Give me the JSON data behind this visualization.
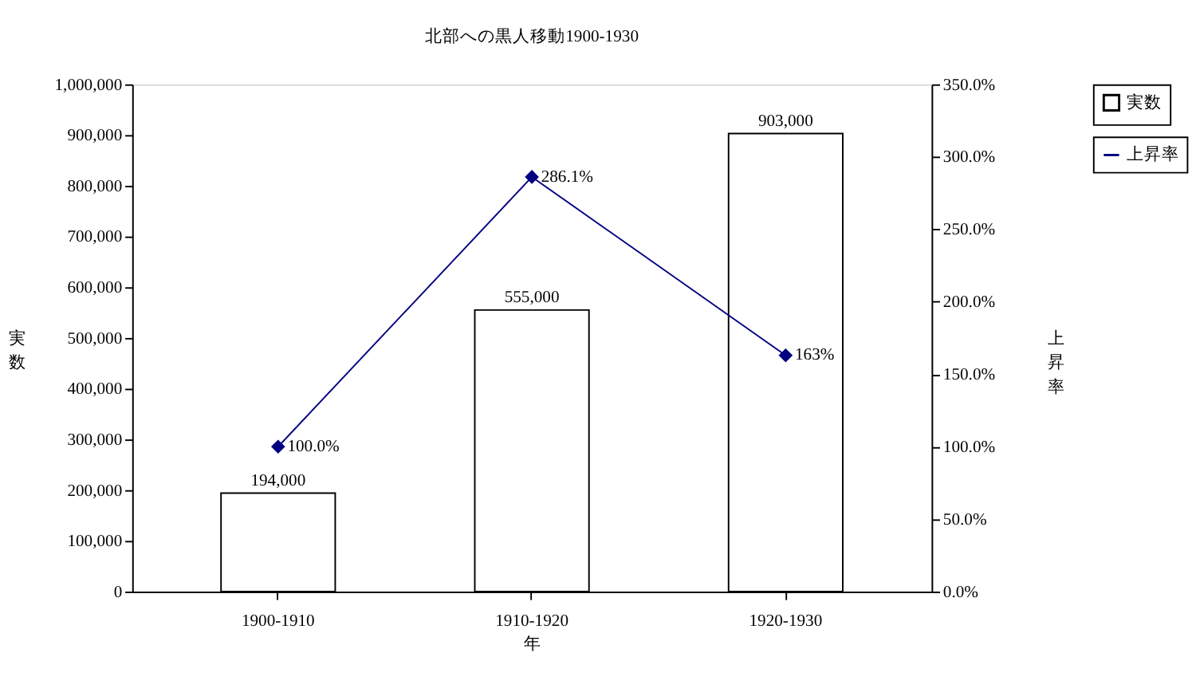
{
  "chart_data": {
    "type": "bar",
    "title": "北部への黒人移動1900-1930",
    "xlabel": "年",
    "ylabel": "実数",
    "y2label": "上昇率",
    "categories": [
      "1900-1910",
      "1910-1920",
      "1920-1930"
    ],
    "series": [
      {
        "name": "実数",
        "color": "#ffffff",
        "values": [
          194000,
          555000,
          903000
        ],
        "value_labels": [
          "194,000",
          "555,000",
          "903,000"
        ]
      },
      {
        "name": "上昇率",
        "type": "line",
        "axis": "y2",
        "color": "#000080",
        "values": [
          100,
          286.1,
          163
        ],
        "value_labels": [
          "100.0%",
          "286.1%",
          "163%"
        ]
      }
    ],
    "ylim": [
      0,
      1000000
    ],
    "yticks": [
      {
        "value": 0,
        "label": "0"
      },
      {
        "value": 100000,
        "label": "100,000"
      },
      {
        "value": 200000,
        "label": "200,000"
      },
      {
        "value": 300000,
        "label": "300,000"
      },
      {
        "value": 400000,
        "label": "400,000"
      },
      {
        "value": 500000,
        "label": "500,000"
      },
      {
        "value": 600000,
        "label": "600,000"
      },
      {
        "value": 700000,
        "label": "700,000"
      },
      {
        "value": 800000,
        "label": "800,000"
      },
      {
        "value": 900000,
        "label": "900,000"
      },
      {
        "value": 1000000,
        "label": "1,000,000"
      }
    ],
    "y2lim": [
      0,
      350
    ],
    "y2ticks": [
      {
        "value": 0,
        "label": "0.0%"
      },
      {
        "value": 50,
        "label": "50.0%"
      },
      {
        "value": 100,
        "label": "100.0%"
      },
      {
        "value": 150,
        "label": "150.0%"
      },
      {
        "value": 200,
        "label": "200.0%"
      },
      {
        "value": 250,
        "label": "250.0%"
      },
      {
        "value": 300,
        "label": "300.0%"
      },
      {
        "value": 350,
        "label": "350.0%"
      }
    ],
    "legend": "right",
    "marker": "diamond",
    "line_style": "solid",
    "grid": false
  }
}
